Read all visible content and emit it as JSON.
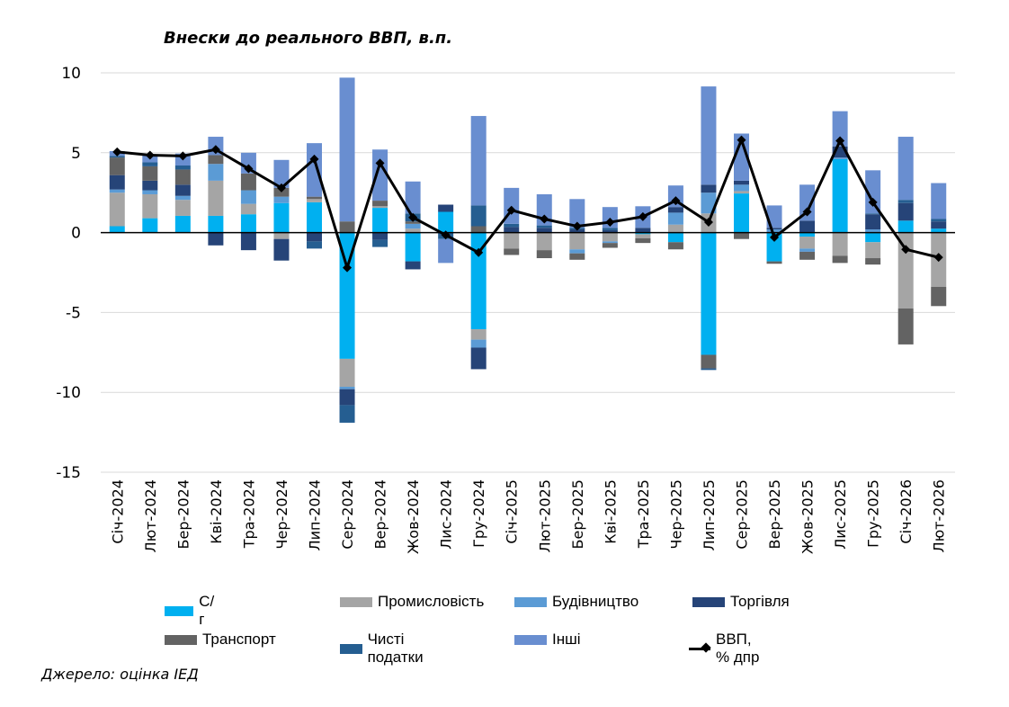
{
  "chart_data": {
    "type": "bar",
    "stacked": true,
    "title": "Внески до реального ВВП, в.п.",
    "source": "Джерело: оцінка ІЕД",
    "xlabel": "",
    "ylabel": "",
    "ylim": [
      -15,
      10
    ],
    "yticks": [
      10,
      5,
      0,
      -5,
      -10,
      -15
    ],
    "grid": true,
    "legend_position": "bottom",
    "categories": [
      "Січ-2024",
      "Лют-2024",
      "Бер-2024",
      "Кві-2024",
      "Тра-2024",
      "Чер-2024",
      "Лип-2024",
      "Сер-2024",
      "Вер-2024",
      "Жов-2024",
      "Лис-2024",
      "Гру-2024",
      "Січ-2025",
      "Лют-2025",
      "Бер-2025",
      "Кві-2025",
      "Тра-2025",
      "Чер-2025",
      "Лип-2025",
      "Сер-2025",
      "Вер-2025",
      "Жов-2025",
      "Лис-2025",
      "Гру-2025",
      "Січ-2026",
      "Лют-2026"
    ],
    "series": [
      {
        "name": "С/г",
        "color": "#00B0F0",
        "values": [
          0.4,
          0.9,
          1.05,
          1.05,
          1.15,
          1.85,
          1.9,
          -7.9,
          1.55,
          -1.8,
          1.3,
          -6.05,
          0,
          0,
          0,
          0,
          -0.1,
          -0.6,
          -7.65,
          2.45,
          -1.8,
          -0.25,
          4.6,
          -0.6,
          0.75,
          0.25
        ]
      },
      {
        "name": "Промисловість",
        "color": "#A5A5A5",
        "values": [
          2.1,
          1.5,
          1.0,
          2.2,
          0.65,
          -0.4,
          0.2,
          -1.75,
          0.1,
          0.25,
          0,
          -0.65,
          -1.0,
          -1.1,
          -1.05,
          -0.55,
          -0.25,
          0.5,
          1.2,
          0.15,
          0,
          -0.75,
          -1.45,
          -1.0,
          -4.75,
          -3.4
        ]
      },
      {
        "name": "Будівництво",
        "color": "#5B9BD5",
        "values": [
          0.2,
          0.25,
          0.25,
          1.05,
          0.85,
          0.4,
          0,
          -0.15,
          0,
          0.3,
          0,
          -0.5,
          0,
          0,
          -0.25,
          -0.1,
          0,
          0.75,
          1.3,
          0.4,
          0.2,
          -0.2,
          0.1,
          0.2,
          0,
          0
        ]
      },
      {
        "name": "Торгівля",
        "color": "#264478",
        "values": [
          0.9,
          0.6,
          0.7,
          -0.8,
          -1.1,
          -1.35,
          -0.55,
          -1.0,
          -0.45,
          -0.5,
          0.45,
          -1.35,
          0.35,
          0.3,
          0.2,
          0.15,
          0.3,
          0.35,
          0.5,
          0.25,
          0.1,
          0.75,
          0.7,
          0.95,
          1.1,
          0.45
        ]
      },
      {
        "name": "Транспорт",
        "color": "#636363",
        "values": [
          1.1,
          0.9,
          0.95,
          0.55,
          1.05,
          0.55,
          0.15,
          0.7,
          0.35,
          0.15,
          0,
          0.4,
          -0.4,
          -0.5,
          -0.4,
          -0.3,
          -0.3,
          -0.45,
          -0.85,
          -0.4,
          -0.15,
          -0.5,
          -0.45,
          -0.4,
          -2.25,
          -1.2
        ]
      },
      {
        "name": "Чисті податки",
        "color": "#255E91",
        "values": [
          0.1,
          0.25,
          0.25,
          0,
          0,
          0,
          -0.45,
          -1.1,
          -0.45,
          0.5,
          -0.4,
          1.3,
          0.2,
          0.15,
          0.1,
          0.15,
          0,
          0,
          -0.1,
          0,
          0,
          0,
          0,
          0.05,
          0.2,
          0.15
        ]
      },
      {
        "name": "Інші",
        "color": "#698ED0",
        "values": [
          0.3,
          0.45,
          0.75,
          1.15,
          1.3,
          1.75,
          3.35,
          9.0,
          3.2,
          2.0,
          -1.5,
          5.6,
          2.25,
          1.95,
          1.8,
          1.3,
          1.35,
          1.35,
          6.15,
          2.95,
          1.4,
          2.25,
          2.2,
          2.7,
          3.95,
          2.25
        ]
      }
    ],
    "line": {
      "name": "ВВП, % дпр",
      "color": "#000000",
      "values": [
        5.05,
        4.85,
        4.8,
        5.2,
        4.0,
        2.8,
        4.6,
        -2.2,
        4.35,
        0.95,
        -0.15,
        -1.25,
        1.4,
        0.85,
        0.4,
        0.65,
        1.0,
        2.0,
        0.65,
        5.8,
        -0.3,
        1.3,
        5.75,
        1.9,
        -1.05,
        -1.55
      ]
    }
  }
}
